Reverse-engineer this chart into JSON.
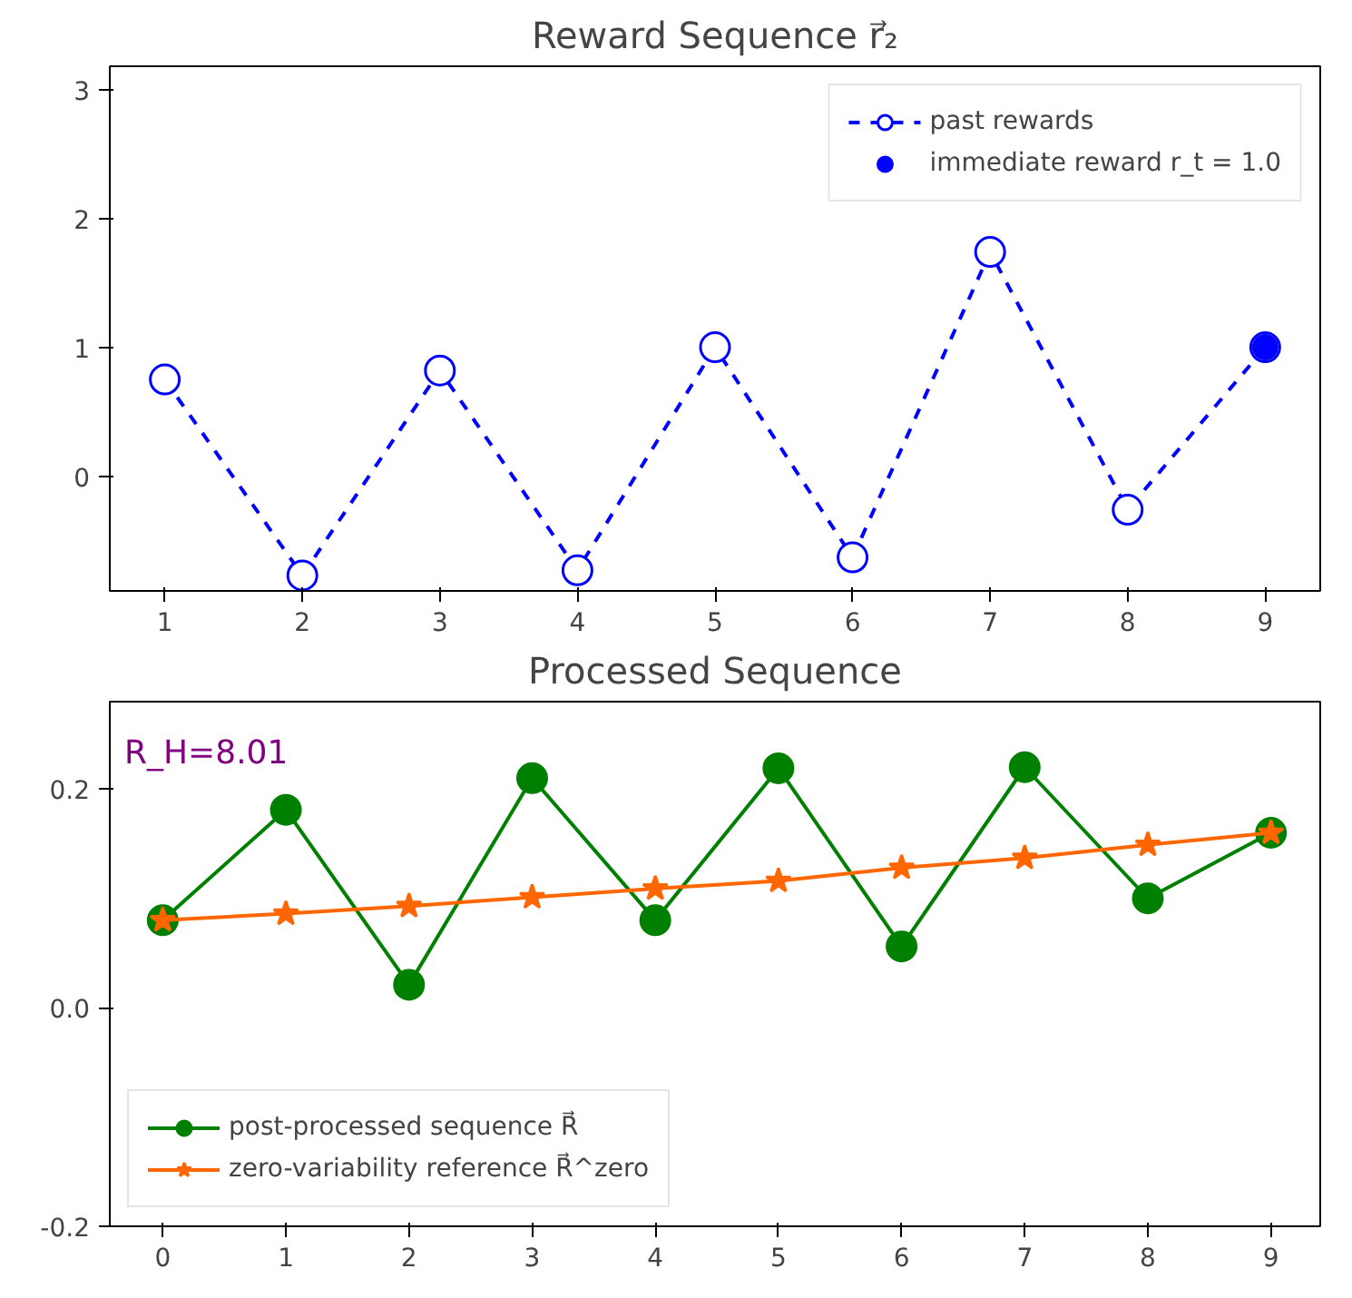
{
  "chart_data": [
    {
      "type": "line",
      "title": "Reward Sequence r⃗₂",
      "x": [
        1,
        2,
        3,
        4,
        5,
        6,
        7,
        8,
        9
      ],
      "xlim": [
        0.6,
        9.4
      ],
      "ylim": [
        -0.89,
        3.18
      ],
      "xticks": [
        1,
        2,
        3,
        4,
        5,
        6,
        7,
        8,
        9
      ],
      "yticks": [
        0,
        1,
        2,
        3
      ],
      "grid": false,
      "legend": "top right",
      "series": [
        {
          "name": "past rewards",
          "color": "#0000ff",
          "line_style": "dashed",
          "marker": "circle",
          "values": [
            0.75,
            -0.77,
            0.82,
            -0.73,
            1.0,
            -0.63,
            1.74,
            -0.26,
            1.0
          ]
        },
        {
          "name": "immediate reward r_t = 1.0",
          "color": "#0000ff",
          "type": "scatter",
          "marker": "circle",
          "x": [
            9
          ],
          "values": [
            1.0
          ]
        }
      ]
    },
    {
      "type": "line",
      "title": "Processed Sequence",
      "x": [
        0,
        1,
        2,
        3,
        4,
        5,
        6,
        7,
        8,
        9
      ],
      "xlim": [
        -0.43,
        9.4
      ],
      "ylim": [
        -0.2,
        0.28
      ],
      "xticks": [
        0,
        1,
        2,
        3,
        4,
        5,
        6,
        7,
        8,
        9
      ],
      "yticks": [
        -0.2,
        {
          "value": 0,
          "label": "0.0"
        },
        0.2
      ],
      "grid": false,
      "legend": "bottom left",
      "annotations": [
        "R_H=8.01"
      ],
      "series": [
        {
          "name": "post-processed sequence R⃗",
          "color": "#008000",
          "line_style": "solid",
          "marker": "circle",
          "values": [
            0.08,
            0.181,
            0.021,
            0.21,
            0.08,
            0.219,
            0.056,
            0.22,
            0.1,
            0.16
          ]
        },
        {
          "name": "zero-variability reference R⃗^zero",
          "color": "#ff6600",
          "line_style": "solid",
          "marker": "star",
          "values": [
            0.08,
            0.086,
            0.093,
            0.101,
            0.109,
            0.116,
            0.128,
            0.137,
            0.149,
            0.16
          ]
        }
      ]
    }
  ]
}
